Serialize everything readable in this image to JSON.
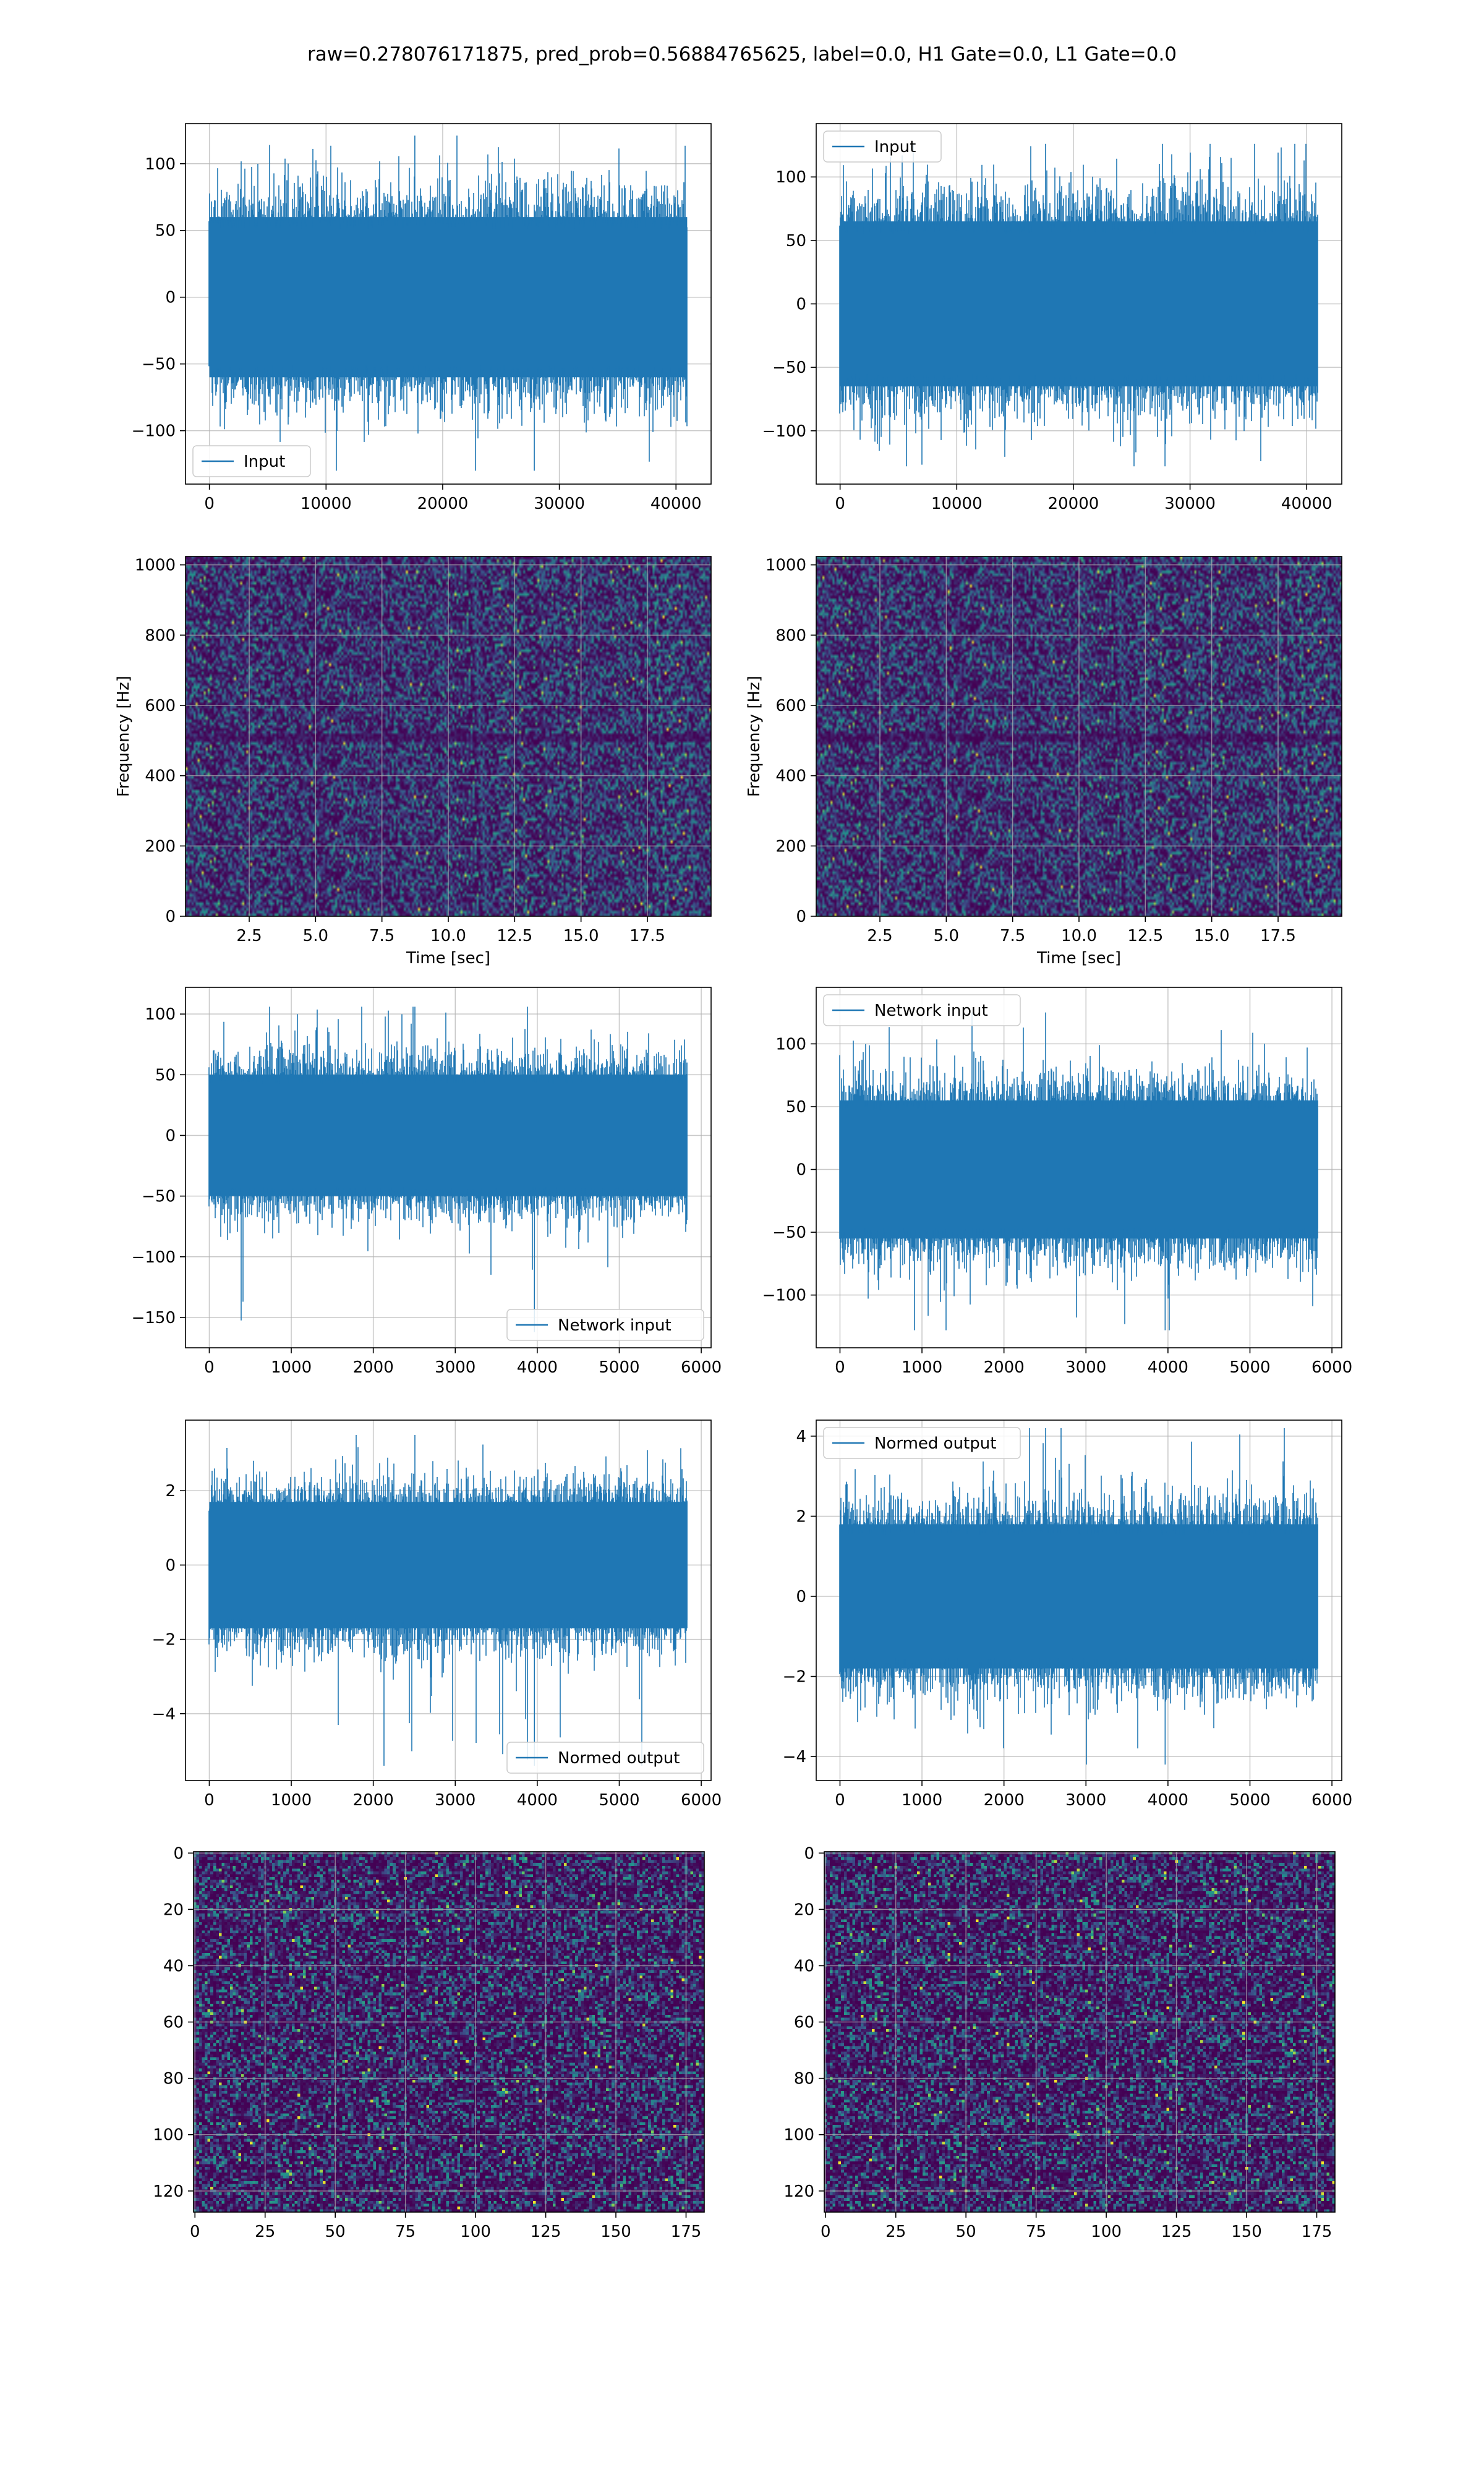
{
  "title": "raw=0.278076171875, pred_prob=0.56884765625, label=0.0, H1 Gate=0.0, L1 Gate=0.0",
  "colors": {
    "series": "#1f77b4",
    "grid": "#b0b0b0",
    "heat_low": "#440154",
    "heat_mid": "#31688e",
    "heat_hi": "#21918c",
    "heat_top": "#fde725"
  },
  "chart_data": [
    {
      "id": "h1-input",
      "type": "line",
      "legend": "Input",
      "legend_loc": "lower-left",
      "grid": true,
      "n_points": 40960,
      "xlim": [
        -2048,
        43008
      ],
      "ylim": [
        -140,
        130
      ],
      "xticks": [
        0,
        10000,
        20000,
        30000,
        40000
      ],
      "yticks": [
        -100,
        -50,
        0,
        50,
        100
      ],
      "band": [
        -60,
        60
      ],
      "spikes": [
        -130,
        121
      ]
    },
    {
      "id": "l1-input",
      "type": "line",
      "legend": "Input",
      "legend_loc": "upper-left",
      "grid": true,
      "n_points": 40960,
      "xlim": [
        -2048,
        43008
      ],
      "ylim": [
        -142,
        142
      ],
      "xticks": [
        0,
        10000,
        20000,
        30000,
        40000
      ],
      "yticks": [
        -100,
        -50,
        0,
        50,
        100
      ],
      "band": [
        -65,
        65
      ],
      "spikes": [
        -128,
        126
      ]
    },
    {
      "id": "h1-spectrogram",
      "type": "heatmap",
      "colormap": "viridis",
      "grid": true,
      "xlabel": "Time [sec]",
      "ylabel": "Frequency [Hz]",
      "xlim": [
        0.1,
        19.9
      ],
      "ylim": [
        0,
        1024
      ],
      "xticks": [
        2.5,
        5.0,
        7.5,
        10.0,
        12.5,
        15.0,
        17.5
      ],
      "yticks": [
        0,
        200,
        400,
        600,
        800,
        1000
      ]
    },
    {
      "id": "l1-spectrogram",
      "type": "heatmap",
      "colormap": "viridis",
      "grid": true,
      "xlabel": "Time [sec]",
      "ylabel": "Frequency [Hz]",
      "xlim": [
        0.1,
        19.9
      ],
      "ylim": [
        0,
        1024
      ],
      "xticks": [
        2.5,
        5.0,
        7.5,
        10.0,
        12.5,
        15.0,
        17.5
      ],
      "yticks": [
        0,
        200,
        400,
        600,
        800,
        1000
      ]
    },
    {
      "id": "h1-network-input",
      "type": "line",
      "legend": "Network input",
      "legend_loc": "lower-right",
      "grid": true,
      "n_points": 5832,
      "xlim": [
        -290,
        6120
      ],
      "ylim": [
        -175,
        122
      ],
      "xticks": [
        0,
        1000,
        2000,
        3000,
        4000,
        5000,
        6000
      ],
      "yticks": [
        -150,
        -100,
        -50,
        0,
        50,
        100
      ],
      "band": [
        -50,
        50
      ],
      "spikes": [
        -162,
        106
      ]
    },
    {
      "id": "l1-network-input",
      "type": "line",
      "legend": "Network input",
      "legend_loc": "upper-left",
      "grid": true,
      "n_points": 5832,
      "xlim": [
        -290,
        6120
      ],
      "ylim": [
        -142,
        145
      ],
      "xticks": [
        0,
        1000,
        2000,
        3000,
        4000,
        5000,
        6000
      ],
      "yticks": [
        -100,
        -50,
        0,
        50,
        100
      ],
      "band": [
        -55,
        55
      ],
      "spikes": [
        -128,
        125
      ]
    },
    {
      "id": "h1-normed-output",
      "type": "line",
      "legend": "Normed output",
      "legend_loc": "lower-right",
      "grid": true,
      "n_points": 5832,
      "xlim": [
        -290,
        6120
      ],
      "ylim": [
        -5.8,
        3.9
      ],
      "xticks": [
        0,
        1000,
        2000,
        3000,
        4000,
        5000,
        6000
      ],
      "yticks": [
        -4,
        -2,
        0,
        2
      ],
      "band": [
        -1.7,
        1.7
      ],
      "spikes": [
        -5.4,
        3.5
      ]
    },
    {
      "id": "l1-normed-output",
      "type": "line",
      "legend": "Normed output",
      "legend_loc": "upper-left",
      "grid": true,
      "n_points": 5832,
      "xlim": [
        -290,
        6120
      ],
      "ylim": [
        -4.6,
        4.4
      ],
      "xticks": [
        0,
        1000,
        2000,
        3000,
        4000,
        5000,
        6000
      ],
      "yticks": [
        -4,
        -2,
        0,
        2,
        4
      ],
      "band": [
        -1.8,
        1.8
      ],
      "spikes": [
        -4.2,
        4.2
      ]
    },
    {
      "id": "h1-image",
      "type": "heatmap",
      "colormap": "viridis",
      "grid": true,
      "xlim": [
        -0.5,
        181.5
      ],
      "ylim": [
        127.5,
        -0.5
      ],
      "xticks": [
        0,
        25,
        50,
        75,
        100,
        125,
        150,
        175
      ],
      "yticks": [
        0,
        20,
        40,
        60,
        80,
        100,
        120
      ]
    },
    {
      "id": "l1-image",
      "type": "heatmap",
      "colormap": "viridis",
      "grid": true,
      "xlim": [
        -0.5,
        181.5
      ],
      "ylim": [
        127.5,
        -0.5
      ],
      "xticks": [
        0,
        25,
        50,
        75,
        100,
        125,
        150,
        175
      ],
      "yticks": [
        0,
        20,
        40,
        60,
        80,
        100,
        120
      ]
    }
  ]
}
